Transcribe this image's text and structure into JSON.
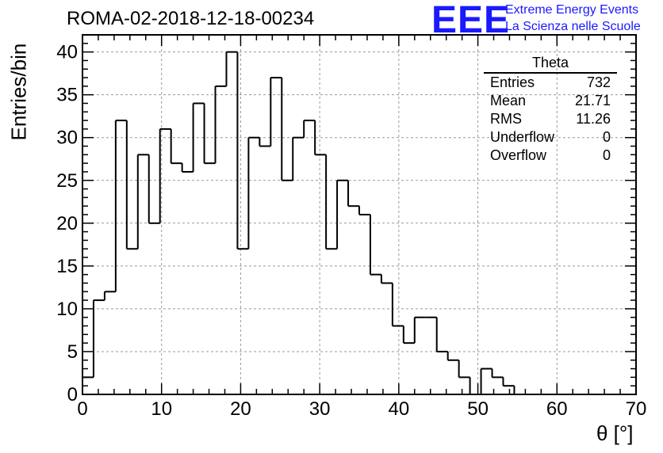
{
  "title": "ROMA-02-2018-12-18-00234",
  "logo": {
    "mark": "EEE",
    "line1": "Extreme Energy Events",
    "line2": "La Scienza nelle Scuole",
    "color": "#1a1aff"
  },
  "stats_box": {
    "title": "Theta",
    "rows": [
      {
        "label": "Entries",
        "value": "732"
      },
      {
        "label": "Mean",
        "value": "21.71"
      },
      {
        "label": "RMS",
        "value": "11.26"
      },
      {
        "label": "Underflow",
        "value": "0"
      },
      {
        "label": "Overflow",
        "value": "0"
      }
    ]
  },
  "chart_data": {
    "type": "bar",
    "style": "step-histogram",
    "title": "ROMA-02-2018-12-18-00234",
    "xlabel": "θ [°]",
    "ylabel": "Entries/bin",
    "bin_width": 1.4,
    "bin_edges_start": 0,
    "xlim": [
      0,
      70
    ],
    "ylim": [
      0,
      42
    ],
    "x_ticks": [
      0,
      10,
      20,
      30,
      40,
      50,
      60,
      70
    ],
    "y_ticks": [
      0,
      5,
      10,
      15,
      20,
      25,
      30,
      35,
      40
    ],
    "grid": true,
    "legend": "top-right stats box",
    "values": [
      2,
      11,
      12,
      32,
      17,
      28,
      20,
      31,
      27,
      26,
      34,
      27,
      36,
      40,
      17,
      30,
      29,
      37,
      25,
      30,
      32,
      28,
      17,
      25,
      22,
      21,
      14,
      13,
      8,
      6,
      9,
      9,
      5,
      4,
      2,
      0,
      3,
      2,
      1,
      0,
      0,
      0,
      0,
      0,
      0,
      0,
      0,
      0,
      0,
      0
    ]
  }
}
